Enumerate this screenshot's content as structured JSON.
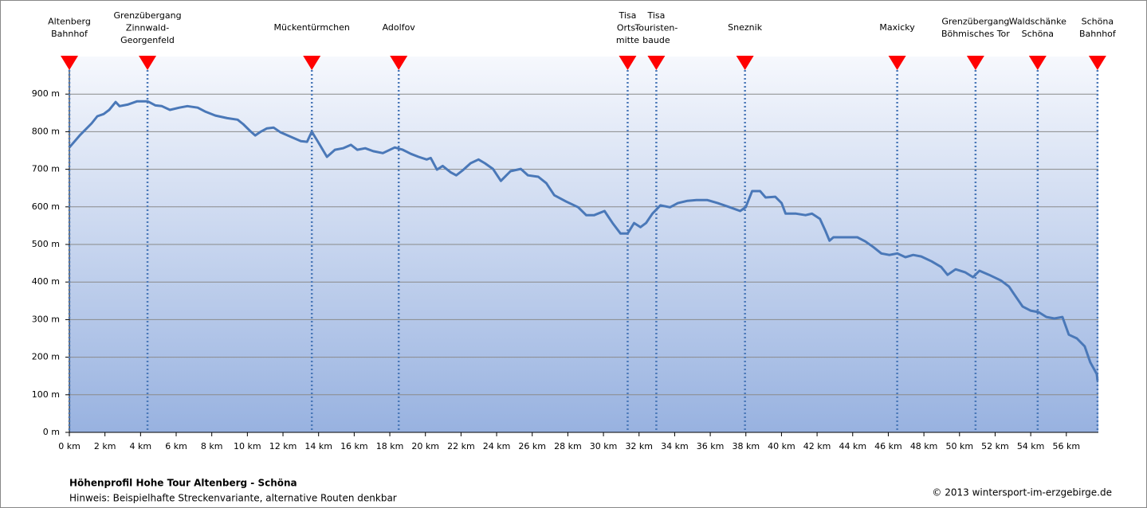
{
  "chart_data": {
    "type": "line",
    "title": "Höhenprofil Hohe Tour Altenberg - Schöna",
    "subtitle": "Hinweis: Beispielhafte Streckenvariante, alternative Routen denkbar",
    "credit": "© 2013 wintersport-im-erzgebirge.de",
    "color": "#4a78b8",
    "marker_color": "#ff0000",
    "grid": true,
    "x": [
      0,
      0.58,
      1.25,
      1.57,
      1.93,
      2.24,
      2.6,
      2.82,
      3.27,
      3.81,
      4.39,
      4.84,
      5.2,
      5.65,
      6.18,
      6.63,
      7.21,
      7.66,
      8.2,
      8.87,
      9.45,
      9.77,
      10.2,
      10.44,
      10.75,
      11.1,
      11.47,
      11.87,
      12.46,
      13.0,
      13.35,
      13.62,
      14.02,
      14.47,
      14.92,
      15.37,
      15.82,
      16.17,
      16.62,
      17.07,
      17.61,
      18.28,
      18.73,
      19.18,
      19.62,
      20.07,
      20.3,
      20.65,
      20.97,
      21.42,
      21.73,
      22.09,
      22.54,
      22.98,
      23.34,
      23.79,
      24.24,
      24.78,
      25.36,
      25.76,
      26.34,
      26.79,
      27.24,
      27.91,
      28.58,
      29.03,
      29.48,
      30.06,
      30.51,
      30.96,
      31.36,
      31.72,
      32.08,
      32.39,
      32.75,
      33.2,
      33.74,
      34.18,
      34.72,
      35.22,
      35.84,
      36.42,
      37.1,
      37.68,
      37.99,
      38.35,
      38.8,
      39.11,
      39.65,
      40.01,
      40.23,
      40.82,
      41.35,
      41.71,
      42.16,
      42.47,
      42.7,
      42.92,
      43.59,
      44.26,
      44.71,
      45.16,
      45.61,
      46.06,
      46.51,
      46.96,
      47.4,
      47.85,
      48.43,
      48.97,
      49.33,
      49.78,
      50.31,
      50.76,
      51.12,
      51.66,
      52.33,
      52.78,
      53.09,
      53.54,
      53.99,
      54.44,
      54.88,
      55.33,
      55.78,
      56.14,
      56.59,
      57.03,
      57.35,
      57.71,
      57.75
    ],
    "values": [
      758,
      790,
      822,
      841,
      847,
      858,
      879,
      868,
      872,
      881,
      881,
      870,
      868,
      858,
      864,
      868,
      864,
      853,
      843,
      836,
      832,
      820,
      800,
      790,
      800,
      809,
      811,
      798,
      786,
      775,
      773,
      800,
      769,
      733,
      752,
      756,
      765,
      752,
      756,
      748,
      743,
      758,
      752,
      741,
      733,
      726,
      730,
      699,
      709,
      692,
      684,
      697,
      716,
      726,
      716,
      701,
      669,
      695,
      701,
      684,
      680,
      663,
      631,
      614,
      599,
      578,
      578,
      589,
      557,
      529,
      529,
      557,
      546,
      557,
      582,
      604,
      599,
      610,
      616,
      618,
      618,
      610,
      599,
      589,
      599,
      642,
      642,
      625,
      627,
      610,
      582,
      582,
      578,
      582,
      568,
      536,
      510,
      519,
      519,
      519,
      508,
      493,
      476,
      472,
      476,
      466,
      472,
      468,
      455,
      440,
      419,
      434,
      426,
      413,
      430,
      419,
      404,
      388,
      366,
      335,
      324,
      320,
      307,
      303,
      307,
      260,
      250,
      229,
      186,
      155,
      138
    ],
    "markers": [
      {
        "x": 0,
        "label": [
          "Altenberg",
          "Bahnhof"
        ]
      },
      {
        "x": 4.39,
        "label": [
          "Grenzübergang",
          "Zinnwald-",
          "Georgenfeld"
        ]
      },
      {
        "x": 13.62,
        "label": [
          "Mückentürmchen"
        ]
      },
      {
        "x": 18.5,
        "label": [
          "Adolfov"
        ]
      },
      {
        "x": 31.36,
        "label": [
          "Tisa",
          "Orts-",
          "mitte"
        ]
      },
      {
        "x": 32.97,
        "label": [
          "Tisa",
          "Touristen-",
          "baude"
        ]
      },
      {
        "x": 37.95,
        "label": [
          "Sneznik"
        ]
      },
      {
        "x": 46.5,
        "label": [
          "Maxicky"
        ]
      },
      {
        "x": 50.9,
        "label": [
          "Grenzübergang",
          "Böhmisches Tor"
        ]
      },
      {
        "x": 54.39,
        "label": [
          "Waldschänke",
          "Schöna"
        ]
      },
      {
        "x": 57.75,
        "label": [
          "Schöna",
          "Bahnhof"
        ]
      }
    ],
    "xlim": [
      0,
      57.8
    ],
    "ylim": [
      0,
      1000
    ],
    "xticks": [
      {
        "value": 0,
        "label": "0 km"
      },
      {
        "value": 2,
        "label": "2 km"
      },
      {
        "value": 4,
        "label": "4 km"
      },
      {
        "value": 6,
        "label": "6 km"
      },
      {
        "value": 8,
        "label": "8 km"
      },
      {
        "value": 10,
        "label": "10 km"
      },
      {
        "value": 12,
        "label": "12 km"
      },
      {
        "value": 14,
        "label": "14 km"
      },
      {
        "value": 16,
        "label": "16 km"
      },
      {
        "value": 18,
        "label": "18 km"
      },
      {
        "value": 20,
        "label": "20 km"
      },
      {
        "value": 22,
        "label": "22 km"
      },
      {
        "value": 24,
        "label": "24 km"
      },
      {
        "value": 26,
        "label": "26 km"
      },
      {
        "value": 28,
        "label": "28 km"
      },
      {
        "value": 30,
        "label": "30 km"
      },
      {
        "value": 32,
        "label": "32 km"
      },
      {
        "value": 34,
        "label": "34 km"
      },
      {
        "value": 36,
        "label": "36 km"
      },
      {
        "value": 38,
        "label": "38 km"
      },
      {
        "value": 40,
        "label": "40 km"
      },
      {
        "value": 42,
        "label": "42 km"
      },
      {
        "value": 44,
        "label": "44 km"
      },
      {
        "value": 46,
        "label": "46 km"
      },
      {
        "value": 48,
        "label": "48 km"
      },
      {
        "value": 50,
        "label": "50 km"
      },
      {
        "value": 52,
        "label": "52 km"
      },
      {
        "value": 54,
        "label": "54 km"
      },
      {
        "value": 56,
        "label": "56 km"
      }
    ],
    "yticks": [
      {
        "value": 0,
        "label": "0 m"
      },
      {
        "value": 100,
        "label": "100 m"
      },
      {
        "value": 200,
        "label": "200 m"
      },
      {
        "value": 300,
        "label": "300 m"
      },
      {
        "value": 400,
        "label": "400 m"
      },
      {
        "value": 500,
        "label": "500 m"
      },
      {
        "value": 600,
        "label": "600 m"
      },
      {
        "value": 700,
        "label": "700 m"
      },
      {
        "value": 800,
        "label": "800 m"
      },
      {
        "value": 900,
        "label": "900 m"
      }
    ]
  }
}
